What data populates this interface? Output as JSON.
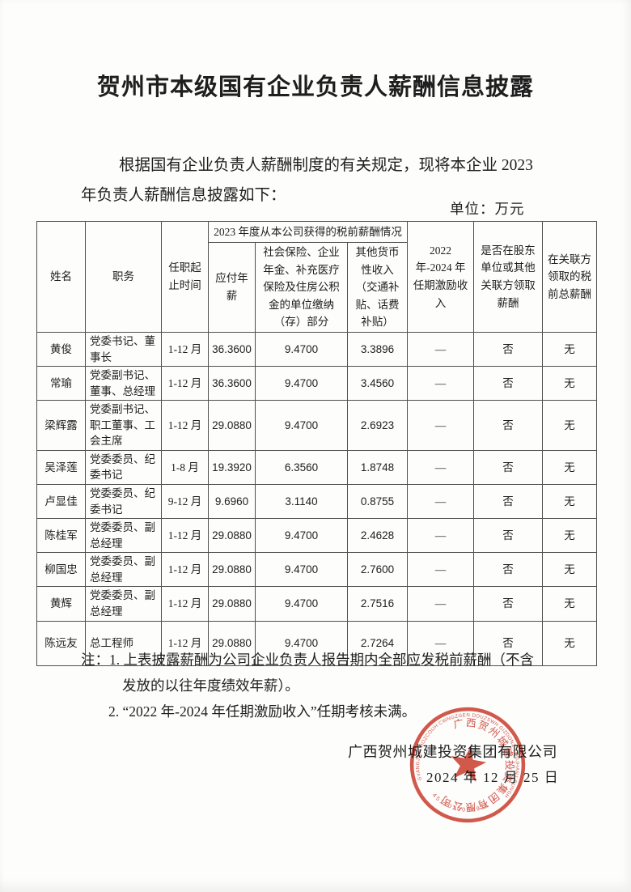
{
  "title": "贺州市本级国有企业负责人薪酬信息披露",
  "intro": {
    "line1": "根据国有企业负责人薪酬制度的有关规定，现将本企业 2023",
    "line2": "年负责人薪酬信息披露如下："
  },
  "unit_label": "单位：万元",
  "table": {
    "header": {
      "name": "姓名",
      "position": "职务",
      "term": "任职起止时间",
      "group_2023": "2023 年度从本公司获得的税前薪酬情况",
      "salary": "应付年薪",
      "insurance": "社会保险、企业年金、补充医疗保险及住房公积金的单位缴纳（存）部分",
      "other_income": "其他货币性收入（交通补贴、话费补贴）",
      "incentive": "2022 年-2024 年任期激励收入",
      "shareholder": "是否在股东单位或其他关联方领取薪酬",
      "related_total": "在关联方领取的税前总薪酬"
    },
    "rows": [
      {
        "name": "黄俊",
        "position": "党委书记、董事长",
        "term": "1-12 月",
        "salary": "36.3600",
        "insurance": "9.4700",
        "other": "3.3896",
        "incentive": "—",
        "shareholder": "否",
        "related": "无"
      },
      {
        "name": "常瑜",
        "position": "党委副书记、董事、总经理",
        "term": "1-12 月",
        "salary": "36.3600",
        "insurance": "9.4700",
        "other": "3.4560",
        "incentive": "—",
        "shareholder": "否",
        "related": "无"
      },
      {
        "name": "梁辉露",
        "position": "党委副书记、职工董事、工会主席",
        "term": "1-12 月",
        "salary": "29.0880",
        "insurance": "9.4700",
        "other": "2.6923",
        "incentive": "—",
        "shareholder": "否",
        "related": "无"
      },
      {
        "name": "吴泽莲",
        "position": "党委委员、纪委书记",
        "term": "1-8 月",
        "salary": "19.3920",
        "insurance": "6.3560",
        "other": "1.8748",
        "incentive": "—",
        "shareholder": "否",
        "related": "无"
      },
      {
        "name": "卢显佳",
        "position": "党委委员、纪委书记",
        "term": "9-12 月",
        "salary": "9.6960",
        "insurance": "3.1140",
        "other": "0.8755",
        "incentive": "—",
        "shareholder": "否",
        "related": "无"
      },
      {
        "name": "陈桂军",
        "position": "党委委员、副总经理",
        "term": "1-12 月",
        "salary": "29.0880",
        "insurance": "9.4700",
        "other": "2.4628",
        "incentive": "—",
        "shareholder": "否",
        "related": "无"
      },
      {
        "name": "柳国忠",
        "position": "党委委员、副总经理",
        "term": "1-12 月",
        "salary": "29.0880",
        "insurance": "9.4700",
        "other": "2.7600",
        "incentive": "—",
        "shareholder": "否",
        "related": "无"
      },
      {
        "name": "黄辉",
        "position": "党委委员、副总经理",
        "term": "1-12 月",
        "salary": "29.0880",
        "insurance": "9.4700",
        "other": "2.7516",
        "incentive": "—",
        "shareholder": "否",
        "related": "无"
      },
      {
        "name": "陈远友",
        "position": "总工程师",
        "term": "1-12 月",
        "salary": "29.0880",
        "insurance": "9.4700",
        "other": "2.7264",
        "incentive": "—",
        "shareholder": "否",
        "related": "无"
      }
    ]
  },
  "notes": {
    "line1": "注：1. 上表披露薪酬为公司企业负责人报告期内全部应发税前薪酬（不含",
    "line2": "发放的以往年度绩效年薪）。",
    "line3": "2. “2022 年-2024 年任期激励收入”任期考核未满。"
  },
  "signature": {
    "company": "广西贺州城建投资集团有限公司",
    "date": "2024 年 12 月 25 日"
  },
  "seal": {
    "chinese_arc": "广西贺州城建投资集团有限公司",
    "latin_arc": "GVANGJSIH HOZCOUH CWNGZGEN DOUZSWH GIZDONZ YOUJHANJ GUNGHSWH",
    "number": "4511020038911",
    "color": "#cd4334"
  }
}
